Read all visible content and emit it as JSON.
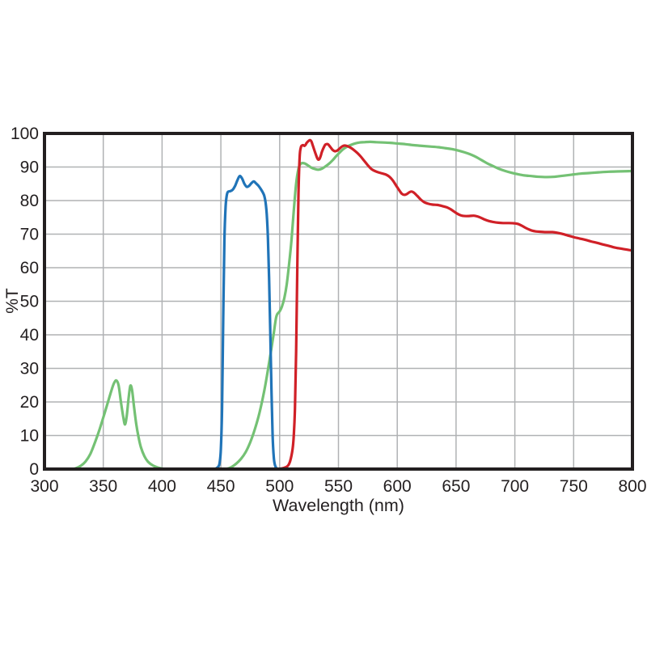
{
  "chart_data": {
    "type": "line",
    "title": "",
    "xlabel": "Wavelength (nm)",
    "ylabel": "%T",
    "xlim": [
      300,
      800
    ],
    "ylim": [
      0,
      100
    ],
    "x_ticks": [
      300,
      350,
      400,
      450,
      500,
      550,
      600,
      650,
      700,
      750,
      800
    ],
    "y_ticks": [
      0,
      10,
      20,
      30,
      40,
      50,
      60,
      70,
      80,
      90,
      100
    ],
    "grid": true,
    "legend_position": "none",
    "series": [
      {
        "name": "green-filter",
        "color": "#74c174",
        "points": [
          [
            300,
            0
          ],
          [
            322,
            0
          ],
          [
            327,
            0.3
          ],
          [
            331,
            1
          ],
          [
            335,
            2.3
          ],
          [
            339,
            4.5
          ],
          [
            343,
            8
          ],
          [
            347,
            12
          ],
          [
            351,
            16.5
          ],
          [
            354,
            20
          ],
          [
            357,
            23.5
          ],
          [
            359,
            25.5
          ],
          [
            361,
            26.4
          ],
          [
            363,
            25
          ],
          [
            365,
            20
          ],
          [
            367,
            15.5
          ],
          [
            368.5,
            13.3
          ],
          [
            370,
            16
          ],
          [
            371.5,
            21
          ],
          [
            373,
            24.8
          ],
          [
            374.5,
            23.5
          ],
          [
            376,
            19
          ],
          [
            378,
            13.5
          ],
          [
            380,
            9.5
          ],
          [
            382,
            6.5
          ],
          [
            385,
            3.8
          ],
          [
            388,
            2.2
          ],
          [
            392,
            1.1
          ],
          [
            396,
            0.5
          ],
          [
            401,
            0.1
          ],
          [
            407,
            0
          ],
          [
            420,
            0
          ],
          [
            435,
            0
          ],
          [
            450,
            0
          ],
          [
            455,
            0.1
          ],
          [
            459,
            0.6
          ],
          [
            463,
            1.6
          ],
          [
            467,
            3
          ],
          [
            471,
            5
          ],
          [
            475,
            8
          ],
          [
            479,
            12
          ],
          [
            483,
            17
          ],
          [
            487,
            23.5
          ],
          [
            490,
            29.5
          ],
          [
            493,
            36
          ],
          [
            495,
            40.5
          ],
          [
            496,
            43
          ],
          [
            497,
            45.2
          ],
          [
            498,
            46.2
          ],
          [
            500,
            47
          ],
          [
            502,
            48.5
          ],
          [
            504,
            51
          ],
          [
            506,
            55
          ],
          [
            508,
            61
          ],
          [
            510,
            68
          ],
          [
            512,
            77
          ],
          [
            514,
            85
          ],
          [
            516,
            89.5
          ],
          [
            518,
            91
          ],
          [
            521,
            91.1
          ],
          [
            524,
            90.5
          ],
          [
            527,
            89.8
          ],
          [
            530,
            89.4
          ],
          [
            533,
            89.2
          ],
          [
            536,
            89.5
          ],
          [
            539,
            90.2
          ],
          [
            542,
            91
          ],
          [
            545,
            92
          ],
          [
            548,
            93.2
          ],
          [
            551,
            94.3
          ],
          [
            554,
            95.3
          ],
          [
            557,
            96
          ],
          [
            560,
            96.5
          ],
          [
            564,
            97
          ],
          [
            568,
            97.3
          ],
          [
            572,
            97.4
          ],
          [
            577,
            97.5
          ],
          [
            582,
            97.4
          ],
          [
            588,
            97.3
          ],
          [
            594,
            97.2
          ],
          [
            600,
            97
          ],
          [
            607,
            96.8
          ],
          [
            614,
            96.5
          ],
          [
            621,
            96.3
          ],
          [
            628,
            96.1
          ],
          [
            635,
            95.9
          ],
          [
            641,
            95.6
          ],
          [
            647,
            95.3
          ],
          [
            652,
            94.9
          ],
          [
            657,
            94.4
          ],
          [
            662,
            93.8
          ],
          [
            667,
            93
          ],
          [
            672,
            92
          ],
          [
            677,
            91
          ],
          [
            682,
            90.2
          ],
          [
            687,
            89.4
          ],
          [
            692,
            88.8
          ],
          [
            697,
            88.3
          ],
          [
            702,
            87.9
          ],
          [
            708,
            87.5
          ],
          [
            714,
            87.3
          ],
          [
            720,
            87.1
          ],
          [
            727,
            87
          ],
          [
            734,
            87.1
          ],
          [
            741,
            87.4
          ],
          [
            748,
            87.7
          ],
          [
            755,
            88
          ],
          [
            763,
            88.2
          ],
          [
            771,
            88.4
          ],
          [
            780,
            88.6
          ],
          [
            790,
            88.7
          ],
          [
            800,
            88.8
          ]
        ]
      },
      {
        "name": "blue-filter",
        "color": "#2074b8",
        "points": [
          [
            437,
            0
          ],
          [
            444,
            0
          ],
          [
            446,
            0.2
          ],
          [
            448,
            0.8
          ],
          [
            449,
            2
          ],
          [
            450,
            6
          ],
          [
            451,
            18
          ],
          [
            452,
            45
          ],
          [
            453,
            68
          ],
          [
            454,
            78
          ],
          [
            455,
            81.5
          ],
          [
            456,
            82.6
          ],
          [
            458,
            82.8
          ],
          [
            460,
            83.2
          ],
          [
            462,
            84.3
          ],
          [
            464,
            86
          ],
          [
            466,
            87.3
          ],
          [
            468,
            86.6
          ],
          [
            470,
            85
          ],
          [
            472,
            84.1
          ],
          [
            474,
            84.4
          ],
          [
            476,
            85.2
          ],
          [
            478,
            85.7
          ],
          [
            480,
            85.1
          ],
          [
            482,
            84.4
          ],
          [
            484,
            83.4
          ],
          [
            486,
            82.2
          ],
          [
            487,
            81.3
          ],
          [
            488,
            79.5
          ],
          [
            489,
            76
          ],
          [
            490,
            69
          ],
          [
            491,
            57
          ],
          [
            492,
            41
          ],
          [
            493,
            24
          ],
          [
            494,
            10
          ],
          [
            495,
            3.5
          ],
          [
            496,
            1.2
          ],
          [
            497,
            0.4
          ],
          [
            499,
            0
          ],
          [
            505,
            0
          ]
        ]
      },
      {
        "name": "red-filter",
        "color": "#d02027",
        "points": [
          [
            460,
            0
          ],
          [
            490,
            0
          ],
          [
            500,
            0.1
          ],
          [
            504,
            0.4
          ],
          [
            507,
            1
          ],
          [
            509,
            2.5
          ],
          [
            511,
            6
          ],
          [
            512,
            10
          ],
          [
            513,
            18
          ],
          [
            514,
            35
          ],
          [
            515,
            60
          ],
          [
            516,
            82
          ],
          [
            517,
            93
          ],
          [
            518,
            95.8
          ],
          [
            519,
            96.4
          ],
          [
            520,
            96.5
          ],
          [
            521,
            96.3
          ],
          [
            522,
            96.6
          ],
          [
            523,
            97.2
          ],
          [
            525,
            97.9
          ],
          [
            526,
            98
          ],
          [
            527,
            97.6
          ],
          [
            528,
            96.6
          ],
          [
            530,
            94.5
          ],
          [
            532,
            92.6
          ],
          [
            533,
            92.2
          ],
          [
            534,
            92.5
          ],
          [
            535,
            93.4
          ],
          [
            536,
            94.6
          ],
          [
            538,
            96.2
          ],
          [
            539,
            96.7
          ],
          [
            541,
            96.8
          ],
          [
            543,
            96
          ],
          [
            545,
            95.1
          ],
          [
            547,
            94.7
          ],
          [
            549,
            94.9
          ],
          [
            551,
            95.5
          ],
          [
            553,
            96.1
          ],
          [
            555,
            96.4
          ],
          [
            557,
            96.3
          ],
          [
            559,
            96
          ],
          [
            561,
            95.6
          ],
          [
            563,
            95.1
          ],
          [
            566,
            94.2
          ],
          [
            569,
            93.1
          ],
          [
            572,
            91.8
          ],
          [
            575,
            90.5
          ],
          [
            578,
            89.4
          ],
          [
            581,
            88.8
          ],
          [
            584,
            88.4
          ],
          [
            587,
            88.1
          ],
          [
            590,
            87.8
          ],
          [
            593,
            87.2
          ],
          [
            596,
            86.1
          ],
          [
            599,
            84.5
          ],
          [
            602,
            82.9
          ],
          [
            604,
            82
          ],
          [
            606,
            81.7
          ],
          [
            608,
            81.9
          ],
          [
            610,
            82.4
          ],
          [
            612,
            82.7
          ],
          [
            614,
            82.4
          ],
          [
            617,
            81.4
          ],
          [
            620,
            80.3
          ],
          [
            623,
            79.5
          ],
          [
            626,
            79.1
          ],
          [
            630,
            78.8
          ],
          [
            634,
            78.7
          ],
          [
            638,
            78.4
          ],
          [
            642,
            78
          ],
          [
            645,
            77.5
          ],
          [
            648,
            76.8
          ],
          [
            651,
            76.1
          ],
          [
            654,
            75.6
          ],
          [
            657,
            75.4
          ],
          [
            661,
            75.4
          ],
          [
            665,
            75.5
          ],
          [
            668,
            75.3
          ],
          [
            671,
            74.9
          ],
          [
            674,
            74.4
          ],
          [
            678,
            73.9
          ],
          [
            682,
            73.6
          ],
          [
            686,
            73.4
          ],
          [
            690,
            73.3
          ],
          [
            695,
            73.3
          ],
          [
            700,
            73.2
          ],
          [
            703,
            73
          ],
          [
            706,
            72.5
          ],
          [
            709,
            71.9
          ],
          [
            712,
            71.4
          ],
          [
            715,
            71
          ],
          [
            718,
            70.8
          ],
          [
            722,
            70.7
          ],
          [
            727,
            70.6
          ],
          [
            732,
            70.6
          ],
          [
            736,
            70.4
          ],
          [
            740,
            70.1
          ],
          [
            745,
            69.6
          ],
          [
            750,
            69.1
          ],
          [
            755,
            68.7
          ],
          [
            760,
            68.3
          ],
          [
            765,
            67.8
          ],
          [
            770,
            67.4
          ],
          [
            775,
            66.9
          ],
          [
            780,
            66.5
          ],
          [
            785,
            66
          ],
          [
            790,
            65.7
          ],
          [
            795,
            65.4
          ],
          [
            800,
            65.1
          ]
        ]
      }
    ]
  },
  "styles": {
    "background": "#ffffff",
    "axis_color": "#231f20",
    "grid_color": "#b0b2b4",
    "text_color": "#231f20",
    "frame_width": 4,
    "grid_width": 1.5,
    "line_width": 3.2
  }
}
